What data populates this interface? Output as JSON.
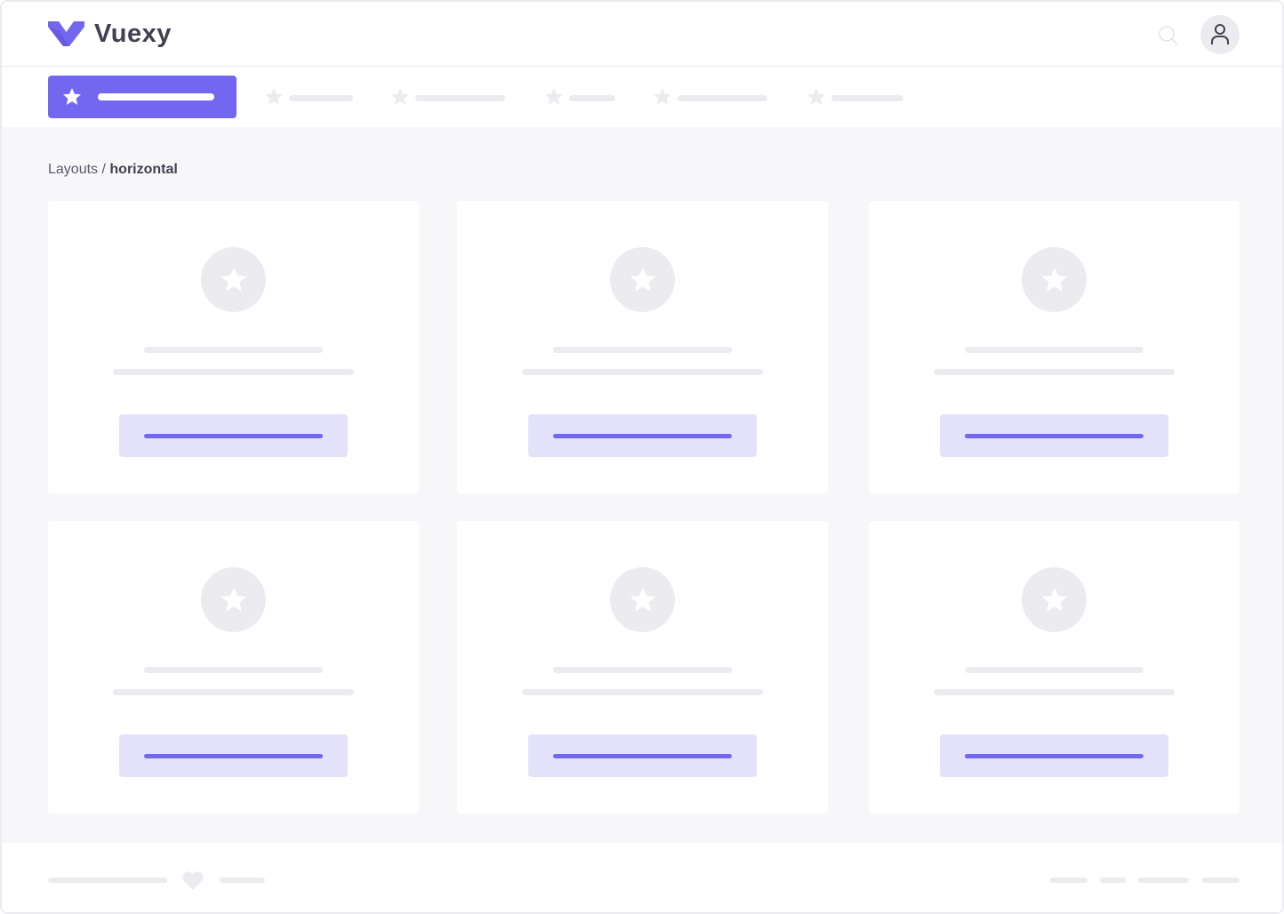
{
  "header": {
    "brand": "Vuexy",
    "logo_icon": "vuexy-logo",
    "search_icon": "search-icon",
    "avatar_icon": "user-icon"
  },
  "colors": {
    "primary": "#7367F0",
    "primary_light": "#E4E1FB",
    "placeholder": "#ECECF0",
    "background": "#F7F7F9"
  },
  "nav": {
    "items_count": 6,
    "active_index": 0
  },
  "breadcrumb": {
    "parent": "Layouts",
    "separator": " / ",
    "current": "horizontal"
  },
  "cards": [
    {},
    {},
    {},
    {},
    {},
    {}
  ]
}
